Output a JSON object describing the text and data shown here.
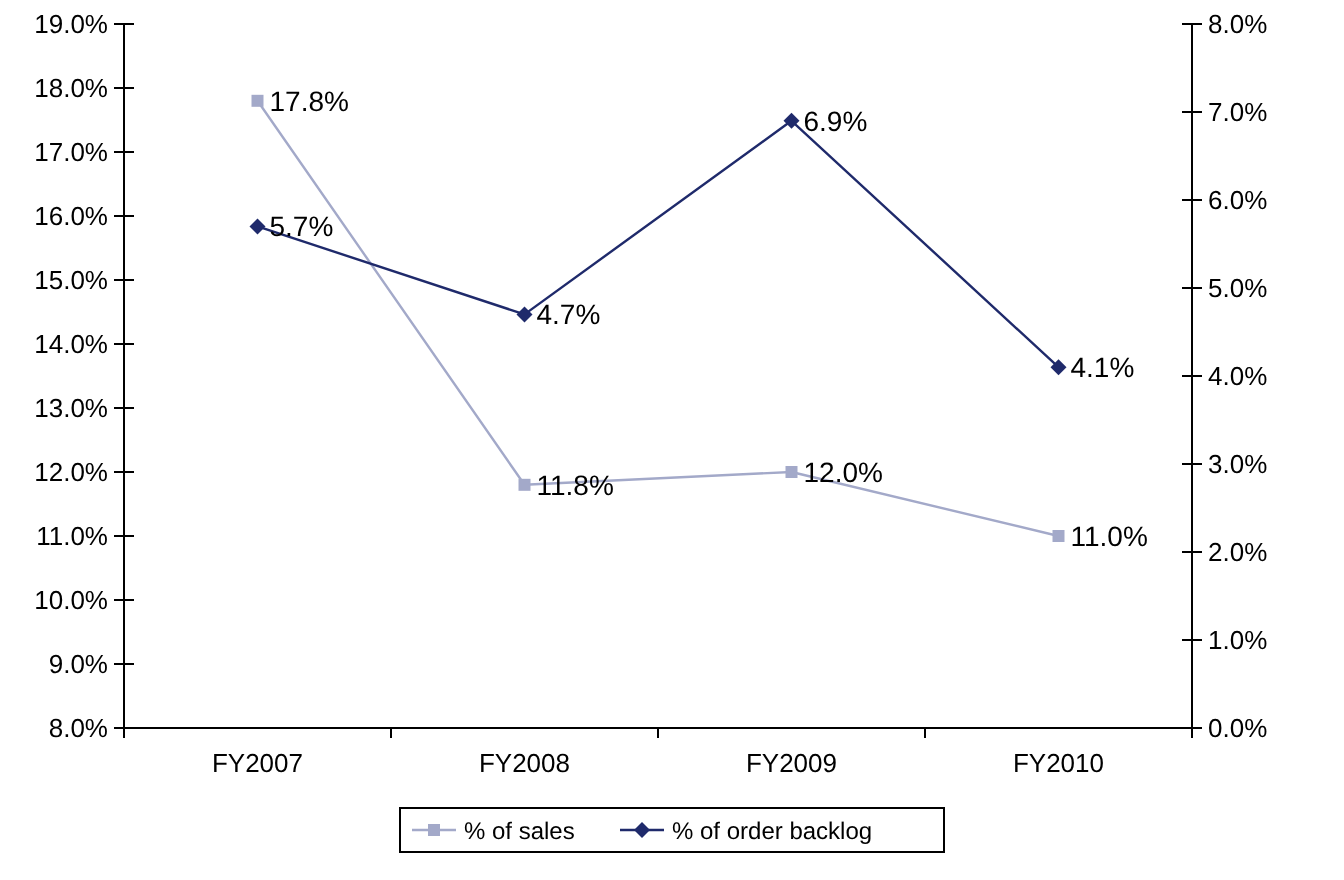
{
  "chart_data": {
    "type": "line",
    "categories": [
      "FY2007",
      "FY2008",
      "FY2009",
      "FY2010"
    ],
    "ylim": [
      8,
      19
    ],
    "yticks": [
      {
        "value": 8,
        "label": "8.0%"
      },
      {
        "value": 9,
        "label": "9.0%"
      },
      {
        "value": 10,
        "label": "10.0%"
      },
      {
        "value": 11,
        "label": "11.0%"
      },
      {
        "value": 12,
        "label": "12.0%"
      },
      {
        "value": 13,
        "label": "13.0%"
      },
      {
        "value": 14,
        "label": "14.0%"
      },
      {
        "value": 15,
        "label": "15.0%"
      },
      {
        "value": 16,
        "label": "16.0%"
      },
      {
        "value": 17,
        "label": "17.0%"
      },
      {
        "value": 18,
        "label": "18.0%"
      },
      {
        "value": 19,
        "label": "19.0%"
      }
    ],
    "y2lim": [
      0,
      8
    ],
    "y2ticks": [
      {
        "value": 0,
        "label": "0.0%"
      },
      {
        "value": 1,
        "label": "1.0%"
      },
      {
        "value": 2,
        "label": "2.0%"
      },
      {
        "value": 3,
        "label": "3.0%"
      },
      {
        "value": 4,
        "label": "4.0%"
      },
      {
        "value": 5,
        "label": "5.0%"
      },
      {
        "value": 6,
        "label": "6.0%"
      },
      {
        "value": 7,
        "label": "7.0%"
      },
      {
        "value": 8,
        "label": "8.0%"
      }
    ],
    "series": [
      {
        "name": "% of sales",
        "color": "#a3a9c9",
        "marker": "square",
        "values": [
          17.8,
          11.8,
          12.0,
          11.0
        ],
        "value_labels": [
          "17.8%",
          "11.8%",
          "12.0%",
          "11.0%"
        ]
      },
      {
        "name": "% of order backlog",
        "color": "#1f2a6b",
        "marker": "diamond",
        "axis": "y2",
        "values": [
          5.7,
          4.7,
          6.9,
          4.1
        ],
        "value_labels": [
          "5.7%",
          "4.7%",
          "6.9%",
          "4.1%"
        ]
      }
    ],
    "legend": "bottom",
    "grid": false
  }
}
